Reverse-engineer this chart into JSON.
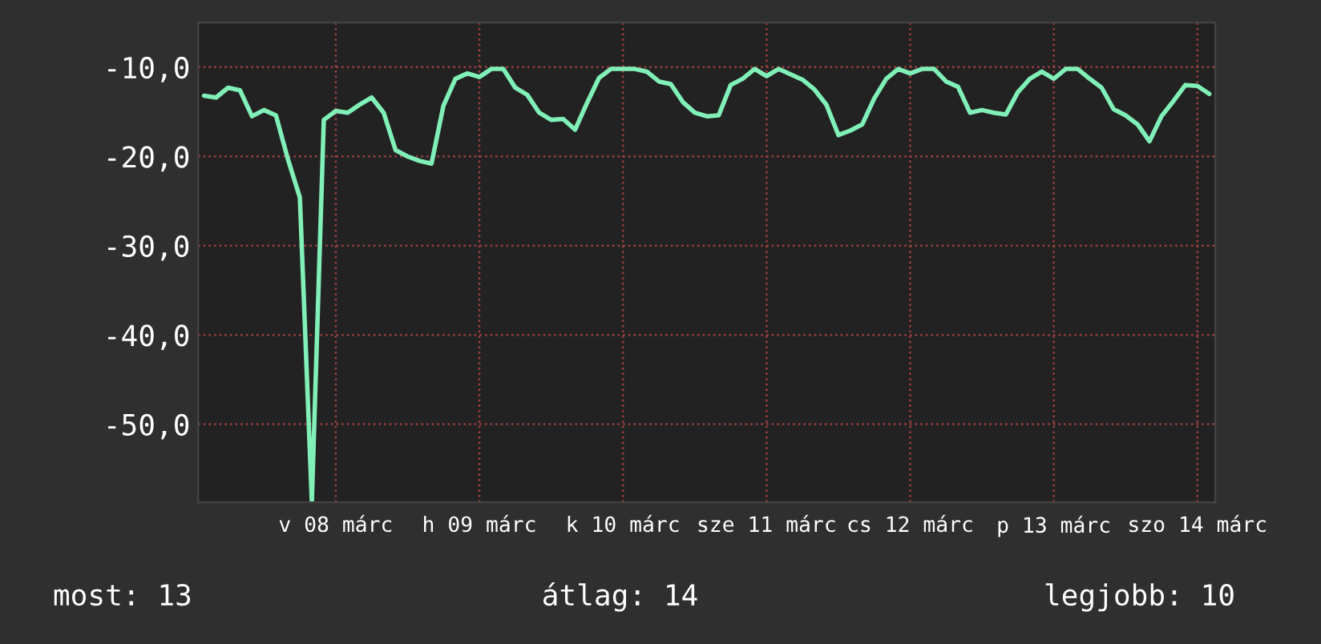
{
  "chart_data": {
    "type": "line",
    "categories": [
      null,
      null,
      null,
      null,
      null,
      null,
      null,
      null,
      null,
      null,
      null,
      "v 08 márc",
      null,
      null,
      null,
      null,
      null,
      null,
      null,
      null,
      null,
      null,
      null,
      "h 09 márc",
      null,
      null,
      null,
      null,
      null,
      null,
      null,
      null,
      null,
      null,
      null,
      "k 10 márc",
      null,
      null,
      null,
      null,
      null,
      null,
      null,
      null,
      null,
      null,
      null,
      "sze 11 márc",
      null,
      null,
      null,
      null,
      null,
      null,
      null,
      null,
      null,
      null,
      null,
      "cs 12 márc",
      null,
      null,
      null,
      null,
      null,
      null,
      null,
      null,
      null,
      null,
      null,
      "p 13 márc",
      null,
      null,
      null,
      null,
      null,
      null,
      null,
      null,
      null,
      null,
      null,
      "szo 14 márc",
      null
    ],
    "series": [
      {
        "color": "#80f0b8",
        "values": [
          -13.2,
          -13.4,
          -12.3,
          -12.6,
          -15.5,
          -14.8,
          -15.4,
          -20.3,
          -24.6,
          -58.7,
          -15.9,
          -14.9,
          -15.1,
          -14.2,
          -13.4,
          -15.1,
          -19.3,
          -20.0,
          -20.5,
          -20.8,
          -14.3,
          -11.3,
          -10.7,
          -11.1,
          -10.2,
          -10.2,
          -12.3,
          -13.1,
          -15.1,
          -15.9,
          -15.8,
          -17.0,
          -14.0,
          -11.2,
          -10.2,
          -10.2,
          -10.2,
          -10.5,
          -11.6,
          -11.9,
          -13.9,
          -15.1,
          -15.5,
          -15.4,
          -12.0,
          -11.3,
          -10.2,
          -11.0,
          -10.2,
          -10.8,
          -11.4,
          -12.5,
          -14.2,
          -17.6,
          -17.1,
          -16.4,
          -13.5,
          -11.3,
          -10.2,
          -10.7,
          -10.2,
          -10.2,
          -11.6,
          -12.2,
          -15.1,
          -14.8,
          -15.1,
          -15.3,
          -12.8,
          -11.3,
          -10.5,
          -11.3,
          -10.2,
          -10.2,
          -11.3,
          -12.3,
          -14.7,
          -15.4,
          -16.4,
          -18.3,
          -15.5,
          -13.8,
          -12.0,
          -12.1,
          -13.0
        ]
      }
    ],
    "ylim": [
      -58.75,
      -5.0
    ],
    "yticks": [
      {
        "value": -10,
        "label": "-10,0"
      },
      {
        "value": -20,
        "label": "-20,0"
      },
      {
        "value": -30,
        "label": "-30,0"
      },
      {
        "value": -40,
        "label": "-40,0"
      },
      {
        "value": -50,
        "label": "-50,0"
      }
    ],
    "grid": true,
    "line_style": "solid",
    "annotations": [
      "most: 13",
      "átlag: 14",
      "legjobb: 10"
    ]
  }
}
